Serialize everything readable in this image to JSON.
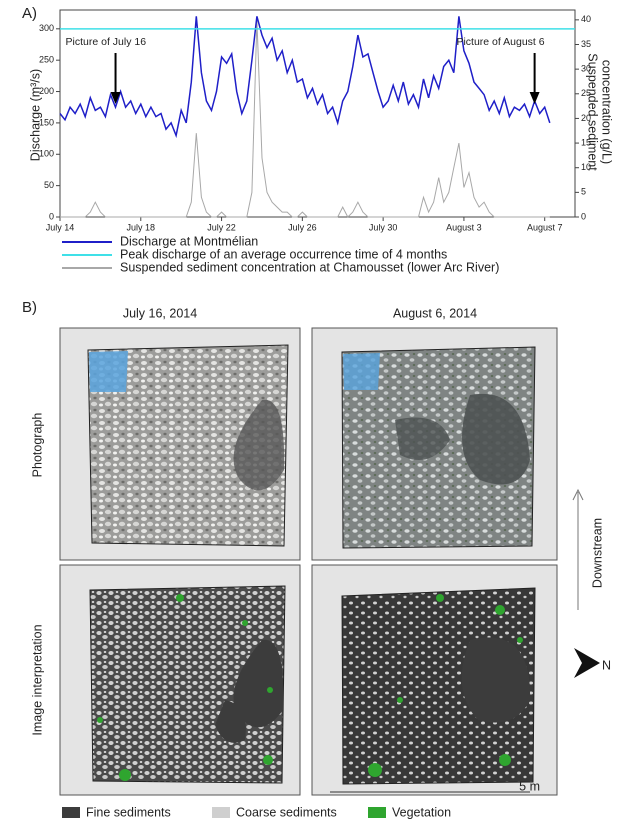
{
  "chart_data": {
    "type": "line",
    "panel_label": "A)",
    "y_label": "Discharge (m³/s)",
    "y2_label": [
      "Suspended sediment",
      "concentration (g/L)"
    ],
    "xlim": [
      0,
      25.5
    ],
    "ylim": [
      0,
      330
    ],
    "y2lim": [
      0,
      42
    ],
    "xticks": [
      {
        "value": 0,
        "label": "July 14"
      },
      {
        "value": 4,
        "label": "July 18"
      },
      {
        "value": 8,
        "label": "July 22"
      },
      {
        "value": 12,
        "label": "July 26"
      },
      {
        "value": 16,
        "label": "July 30"
      },
      {
        "value": 20,
        "label": "August 3"
      },
      {
        "value": 24,
        "label": "August 7"
      }
    ],
    "yticks": [
      0,
      50,
      100,
      150,
      200,
      250,
      300
    ],
    "y2ticks": [
      0,
      5,
      10,
      15,
      20,
      25,
      30,
      35,
      40
    ],
    "x": [
      0,
      0.25,
      0.5,
      0.75,
      1,
      1.25,
      1.5,
      1.75,
      2,
      2.25,
      2.5,
      2.75,
      3,
      3.25,
      3.5,
      3.75,
      4,
      4.25,
      4.5,
      4.75,
      5,
      5.25,
      5.5,
      5.75,
      6,
      6.25,
      6.5,
      6.75,
      7,
      7.25,
      7.5,
      7.75,
      8,
      8.25,
      8.5,
      8.75,
      9,
      9.25,
      9.5,
      9.75,
      10,
      10.25,
      10.5,
      10.75,
      11,
      11.25,
      11.5,
      11.75,
      12,
      12.25,
      12.5,
      12.75,
      13,
      13.25,
      13.5,
      13.75,
      14,
      14.25,
      14.5,
      14.75,
      15,
      15.25,
      15.5,
      15.75,
      16,
      16.25,
      16.5,
      16.75,
      17,
      17.25,
      17.5,
      17.75,
      18,
      18.25,
      18.5,
      18.75,
      19,
      19.25,
      19.5,
      19.75,
      20,
      20.25,
      20.5,
      20.75,
      21,
      21.25,
      21.5,
      21.75,
      22,
      22.25,
      22.5,
      22.75,
      23,
      23.25,
      23.5,
      23.75,
      24,
      24.25
    ],
    "series": [
      {
        "name": "Discharge at Montmélian",
        "color": "#1f1fc8",
        "axis": "y",
        "values": [
          165,
          155,
          175,
          165,
          180,
          160,
          190,
          170,
          175,
          160,
          195,
          175,
          200,
          175,
          185,
          165,
          180,
          160,
          175,
          160,
          165,
          140,
          150,
          130,
          170,
          150,
          215,
          320,
          230,
          185,
          170,
          200,
          255,
          245,
          260,
          200,
          165,
          185,
          250,
          320,
          290,
          270,
          285,
          250,
          265,
          230,
          250,
          215,
          220,
          190,
          205,
          180,
          195,
          165,
          175,
          150,
          185,
          200,
          240,
          290,
          255,
          260,
          230,
          200,
          175,
          185,
          210,
          185,
          215,
          180,
          195,
          175,
          220,
          190,
          225,
          205,
          240,
          250,
          230,
          320,
          265,
          245,
          215,
          205,
          195,
          170,
          185,
          165,
          190,
          160,
          175,
          170,
          180,
          160,
          185,
          165,
          175,
          150
        ]
      },
      {
        "name": "Suspended sediment concentration at Chamousset (lower Arc River)",
        "color": "#a8a8a8",
        "axis": "y2",
        "values": [
          0,
          0,
          0,
          0,
          0,
          0,
          1,
          3,
          1,
          0,
          0,
          0,
          0,
          0,
          0,
          0,
          0,
          0,
          0,
          0,
          0,
          0,
          0,
          0,
          0,
          0,
          3,
          17,
          4,
          1,
          0,
          0,
          1,
          0,
          0,
          0,
          0,
          0,
          5,
          40,
          12,
          5,
          3,
          2,
          1,
          1,
          0,
          0,
          1,
          0,
          0,
          0,
          0,
          0,
          0,
          0,
          2,
          0,
          1,
          3,
          1,
          0,
          0,
          0,
          0,
          0,
          0,
          0,
          0,
          0,
          0,
          0,
          4,
          1,
          3,
          8,
          3,
          5,
          10,
          15,
          6,
          9,
          4,
          2,
          3,
          1,
          0,
          0,
          0,
          0,
          0,
          0,
          0,
          0,
          0,
          0,
          0,
          0
        ]
      }
    ],
    "reference_line": {
      "name": "Peak discharge of an average occurrence time of 4 months",
      "value": 300,
      "color": "#3fe0e8"
    },
    "annotations": [
      {
        "text": "Picture of July 16",
        "x": 2.75
      },
      {
        "text": "Picture of August 6",
        "x": 23.5
      }
    ]
  },
  "panel_b": {
    "label": "B)",
    "columns": [
      "July 16, 2014",
      "August 6, 2014"
    ],
    "rows": [
      "Photograph",
      "Image interpretation"
    ],
    "direction": "Downstream",
    "north": "N",
    "scale": "5 m",
    "legend": [
      {
        "name": "Fine sediments",
        "color": "#3c3c3c"
      },
      {
        "name": "Coarse sediments",
        "color": "#cfcfcf"
      },
      {
        "name": "Vegetation",
        "color": "#2fa52f"
      }
    ]
  }
}
